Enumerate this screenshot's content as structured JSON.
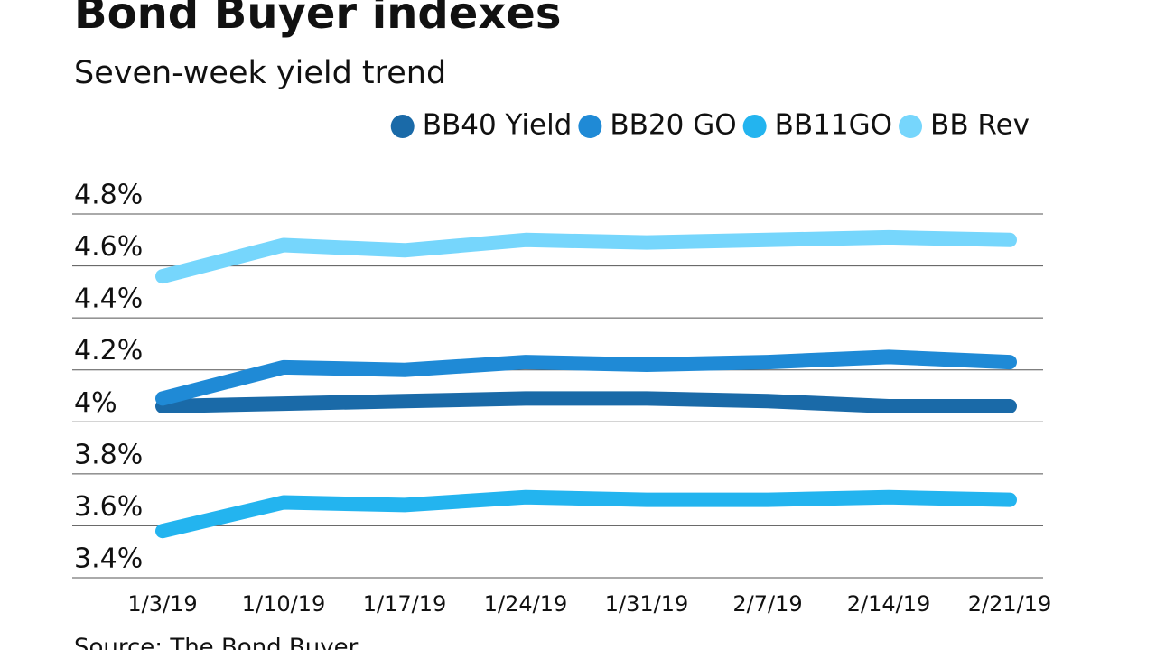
{
  "chart_data": {
    "type": "line",
    "title": "Bond Buyer indexes",
    "subtitle": "Seven-week yield trend",
    "source": "Source: The Bond Buyer",
    "categories": [
      "1/3/19",
      "1/10/19",
      "1/17/19",
      "1/24/19",
      "1/31/19",
      "2/7/19",
      "2/14/19",
      "2/21/19"
    ],
    "series": [
      {
        "name": "BB40 Yield",
        "color": "#1a6aa8",
        "values": [
          4.06,
          4.07,
          4.08,
          4.09,
          4.09,
          4.08,
          4.06,
          4.06
        ]
      },
      {
        "name": "BB20 GO",
        "color": "#1f8ad6",
        "values": [
          4.09,
          4.21,
          4.2,
          4.23,
          4.22,
          4.23,
          4.25,
          4.23
        ]
      },
      {
        "name": "BB11GO",
        "color": "#23b4ef",
        "values": [
          3.58,
          3.69,
          3.68,
          3.71,
          3.7,
          3.7,
          3.71,
          3.7
        ]
      },
      {
        "name": "BB Rev",
        "color": "#76d6fc",
        "values": [
          4.56,
          4.68,
          4.66,
          4.7,
          4.69,
          4.7,
          4.71,
          4.7
        ]
      }
    ],
    "ylim": [
      3.4,
      4.8
    ],
    "yticks": [
      {
        "value": 3.4,
        "label": "3.4%"
      },
      {
        "value": 3.6,
        "label": "3.6%"
      },
      {
        "value": 3.8,
        "label": "3.8%"
      },
      {
        "value": 4,
        "label": "4%"
      },
      {
        "value": 4.2,
        "label": "4.2%"
      },
      {
        "value": 4.4,
        "label": "4.4%"
      },
      {
        "value": 4.6,
        "label": "4.6%"
      },
      {
        "value": 4.8,
        "label": "4.8%"
      }
    ],
    "grid": true,
    "legend": "top-right"
  }
}
